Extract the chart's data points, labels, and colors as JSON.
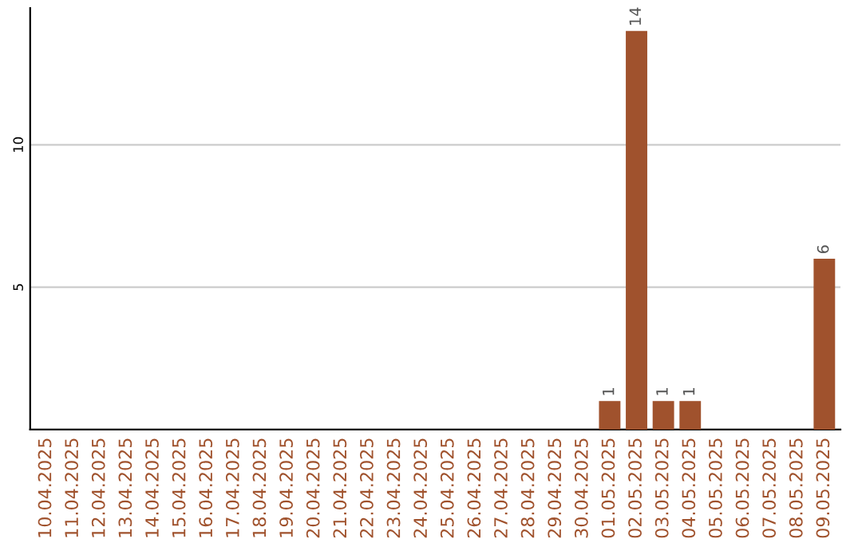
{
  "chart_data": {
    "type": "bar",
    "categories": [
      "10.04.2025",
      "11.04.2025",
      "12.04.2025",
      "13.04.2025",
      "14.04.2025",
      "15.04.2025",
      "16.04.2025",
      "17.04.2025",
      "18.04.2025",
      "19.04.2025",
      "20.04.2025",
      "21.04.2025",
      "22.04.2025",
      "23.04.2025",
      "24.04.2025",
      "25.04.2025",
      "26.04.2025",
      "27.04.2025",
      "28.04.2025",
      "29.04.2025",
      "30.04.2025",
      "01.05.2025",
      "02.05.2025",
      "03.05.2025",
      "04.05.2025",
      "05.05.2025",
      "06.05.2025",
      "07.05.2025",
      "08.05.2025",
      "09.05.2025"
    ],
    "values": [
      0,
      0,
      0,
      0,
      0,
      0,
      0,
      0,
      0,
      0,
      0,
      0,
      0,
      0,
      0,
      0,
      0,
      0,
      0,
      0,
      0,
      1,
      14,
      1,
      1,
      0,
      0,
      0,
      0,
      6
    ],
    "value_labels": [
      null,
      null,
      null,
      null,
      null,
      null,
      null,
      null,
      null,
      null,
      null,
      null,
      null,
      null,
      null,
      null,
      null,
      null,
      null,
      null,
      null,
      "1",
      "14",
      "1",
      "1",
      null,
      null,
      null,
      null,
      "6"
    ],
    "color": "#a0522d",
    "ylim": [
      0,
      14.8
    ],
    "yticks": [
      5,
      10
    ],
    "grid": "y",
    "legend": false
  }
}
